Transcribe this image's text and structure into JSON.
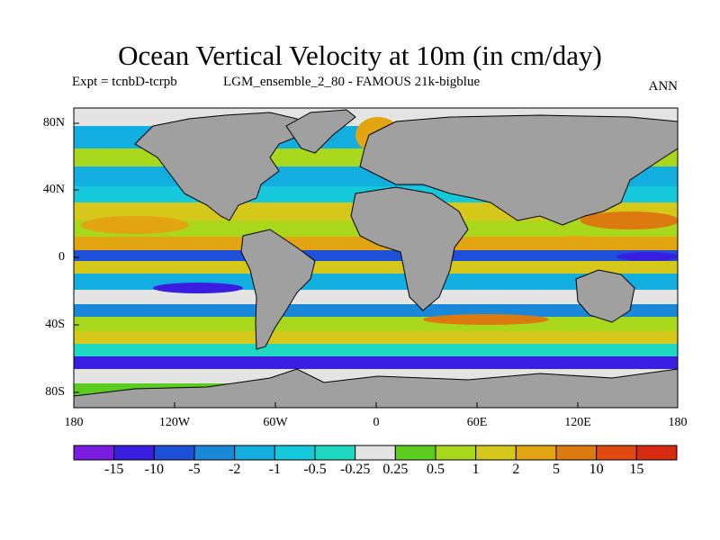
{
  "title": "Ocean Vertical Velocity at 10m (in cm/day)",
  "subtitle_left": "Expt = tcnbD-tcrpb",
  "subtitle_mid": "LGM_ensemble_2_80 - FAMOUS 21k-bigblue",
  "subtitle_right": "ANN",
  "lat_ticks": [
    "80N",
    "40N",
    "0",
    "40S",
    "80S"
  ],
  "lon_ticks": [
    "180",
    "120W",
    "60W",
    "0",
    "60E",
    "120E",
    "180"
  ],
  "colorbar": {
    "labels": [
      "-15",
      "-10",
      "-5",
      "-2",
      "-1",
      "-0.5",
      "-0.25",
      "0.25",
      "0.5",
      "1",
      "2",
      "5",
      "10",
      "15"
    ],
    "colors": [
      "#7a1de0",
      "#3a1ee0",
      "#1e50d8",
      "#1a88d8",
      "#12aee0",
      "#15c8dc",
      "#1ed8c2",
      "#e4e4e4",
      "#5ccd1e",
      "#a8d71c",
      "#d6c81a",
      "#e2a410",
      "#dc7a10",
      "#e04a10",
      "#d82a10"
    ]
  },
  "colors": {
    "land": "#a0a0a0",
    "frame": "#000000"
  }
}
